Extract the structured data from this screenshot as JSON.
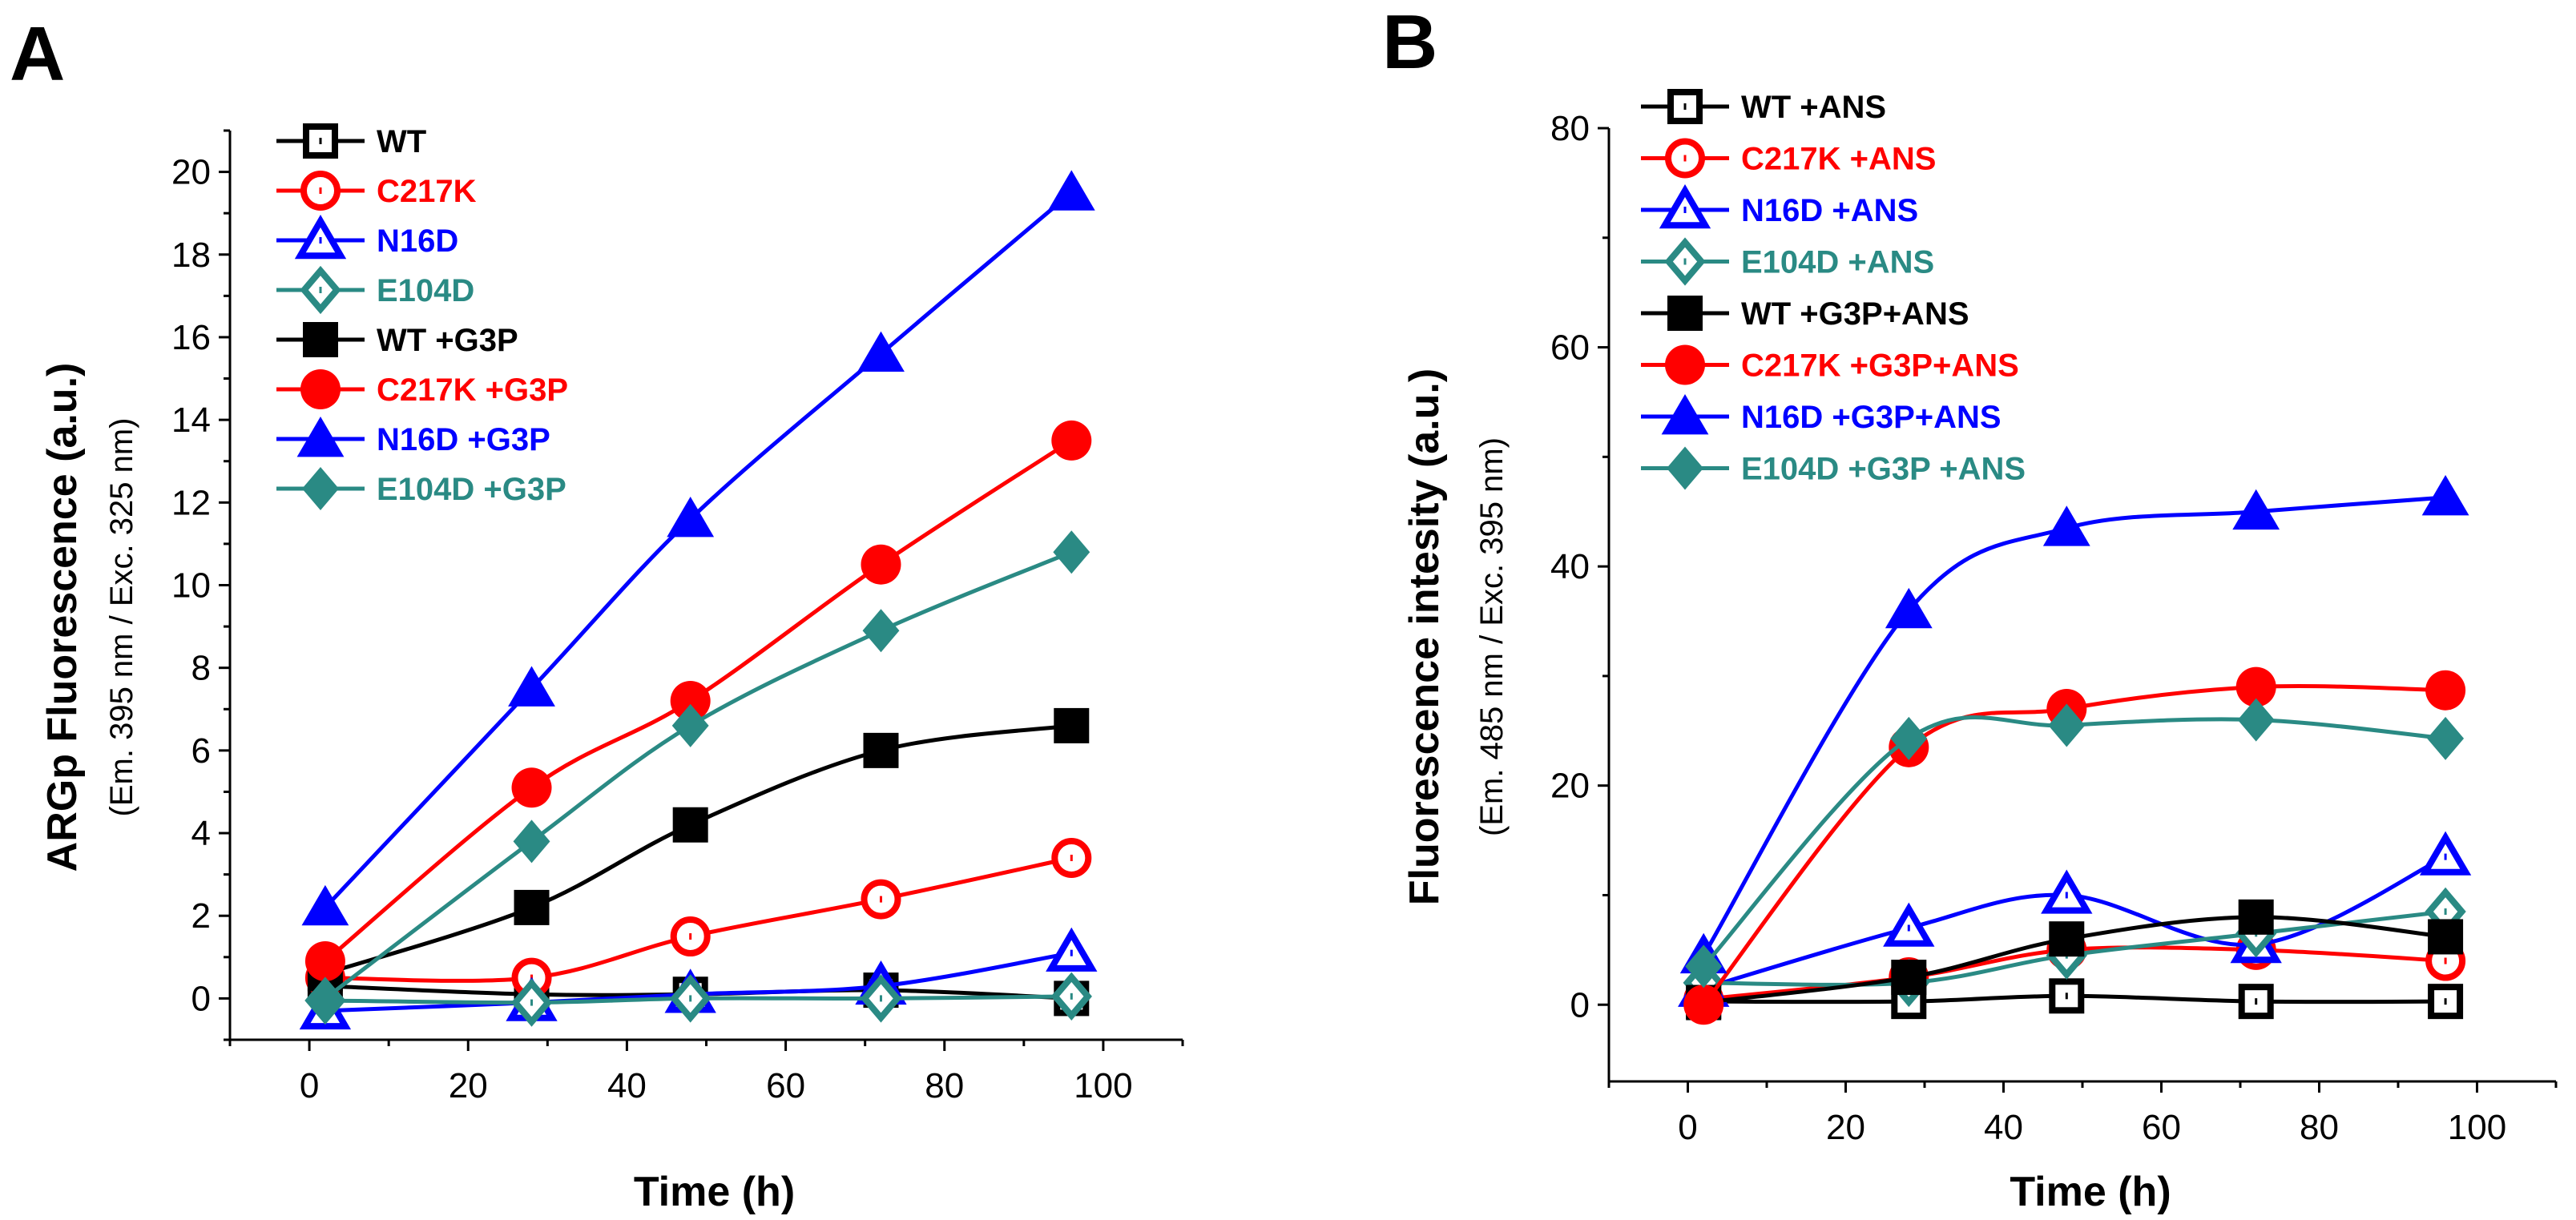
{
  "colors": {
    "black": "#000000",
    "red": "#ff0000",
    "blue": "#0000ff",
    "teal": "#2a8a84"
  },
  "chart_data": [
    {
      "panel": "A",
      "type": "line",
      "xlabel": "Time (h)",
      "ylabel": "ARGp Fluorescence (a.u.)",
      "ylabel_sub": "(Em. 395 nm / Exc. 325 nm)",
      "xlim": [
        -10,
        110
      ],
      "ylim": [
        -1,
        21
      ],
      "xticks": [
        0,
        20,
        40,
        60,
        80,
        100
      ],
      "yticks": [
        0,
        2,
        4,
        6,
        8,
        10,
        12,
        14,
        16,
        18,
        20
      ],
      "grid": false,
      "legend": "top-left",
      "x": [
        2,
        28,
        48,
        72,
        96
      ],
      "series": [
        {
          "name": "WT",
          "color": "black",
          "marker": "square",
          "filled": false,
          "values": [
            0.3,
            0.1,
            0.1,
            0.2,
            0.0
          ]
        },
        {
          "name": "C217K",
          "color": "red",
          "marker": "circle",
          "filled": false,
          "values": [
            0.5,
            0.5,
            1.5,
            2.4,
            3.4
          ]
        },
        {
          "name": "N16D",
          "color": "blue",
          "marker": "triangle",
          "filled": false,
          "values": [
            -0.3,
            -0.1,
            0.1,
            0.3,
            1.1
          ]
        },
        {
          "name": "E104D",
          "color": "teal",
          "marker": "diamond",
          "filled": false,
          "values": [
            -0.05,
            -0.1,
            0.0,
            0.0,
            0.05
          ]
        },
        {
          "name": "WT +G3P",
          "color": "black",
          "marker": "square",
          "filled": true,
          "values": [
            0.6,
            2.2,
            4.2,
            6.0,
            6.6
          ]
        },
        {
          "name": "C217K +G3P",
          "color": "red",
          "marker": "circle",
          "filled": true,
          "values": [
            0.9,
            5.1,
            7.2,
            10.5,
            13.5
          ]
        },
        {
          "name": "N16D +G3P",
          "color": "blue",
          "marker": "triangle",
          "filled": true,
          "values": [
            2.2,
            7.5,
            11.6,
            15.6,
            19.5
          ]
        },
        {
          "name": "E104D +G3P",
          "color": "teal",
          "marker": "diamond",
          "filled": true,
          "values": [
            0.0,
            3.8,
            6.6,
            8.9,
            10.8
          ]
        }
      ]
    },
    {
      "panel": "B",
      "type": "line",
      "xlabel": "Time (h)",
      "ylabel": "Fluorescence intesity  (a.u.)",
      "ylabel_sub": "(Em. 485 nm / Exc. 395 nm)",
      "xlim": [
        -10,
        110
      ],
      "ylim": [
        -7,
        80
      ],
      "xticks": [
        0,
        20,
        40,
        60,
        80,
        100
      ],
      "yticks": [
        0,
        20,
        40,
        60,
        80
      ],
      "grid": false,
      "legend": "top-left",
      "x": [
        2,
        28,
        48,
        72,
        96
      ],
      "series": [
        {
          "name": "WT +ANS",
          "color": "black",
          "marker": "square",
          "filled": false,
          "values": [
            0.3,
            0.3,
            0.8,
            0.3,
            0.3
          ]
        },
        {
          "name": "C217K +ANS",
          "color": "red",
          "marker": "circle",
          "filled": false,
          "values": [
            0.5,
            2.5,
            5.0,
            5.0,
            4.0
          ]
        },
        {
          "name": "N16D +ANS",
          "color": "blue",
          "marker": "triangle",
          "filled": false,
          "values": [
            1.5,
            7.0,
            10.0,
            5.5,
            13.5
          ]
        },
        {
          "name": "E104D +ANS",
          "color": "teal",
          "marker": "diamond",
          "filled": false,
          "values": [
            2.0,
            2.0,
            4.5,
            6.5,
            8.5
          ]
        },
        {
          "name": "WT +G3P+ANS",
          "color": "black",
          "marker": "square",
          "filled": true,
          "values": [
            0.2,
            2.5,
            6.0,
            8.0,
            6.2
          ]
        },
        {
          "name": "C217K +G3P+ANS",
          "color": "red",
          "marker": "circle",
          "filled": true,
          "values": [
            0.0,
            23.5,
            27.0,
            29.0,
            28.7
          ]
        },
        {
          "name": "N16D +G3P+ANS",
          "color": "blue",
          "marker": "triangle",
          "filled": true,
          "values": [
            4.5,
            36.0,
            43.5,
            45.0,
            46.3
          ]
        },
        {
          "name": "E104D +G3P +ANS",
          "color": "teal",
          "marker": "diamond",
          "filled": true,
          "values": [
            3.5,
            24.3,
            25.5,
            26.0,
            24.3
          ]
        }
      ]
    }
  ]
}
